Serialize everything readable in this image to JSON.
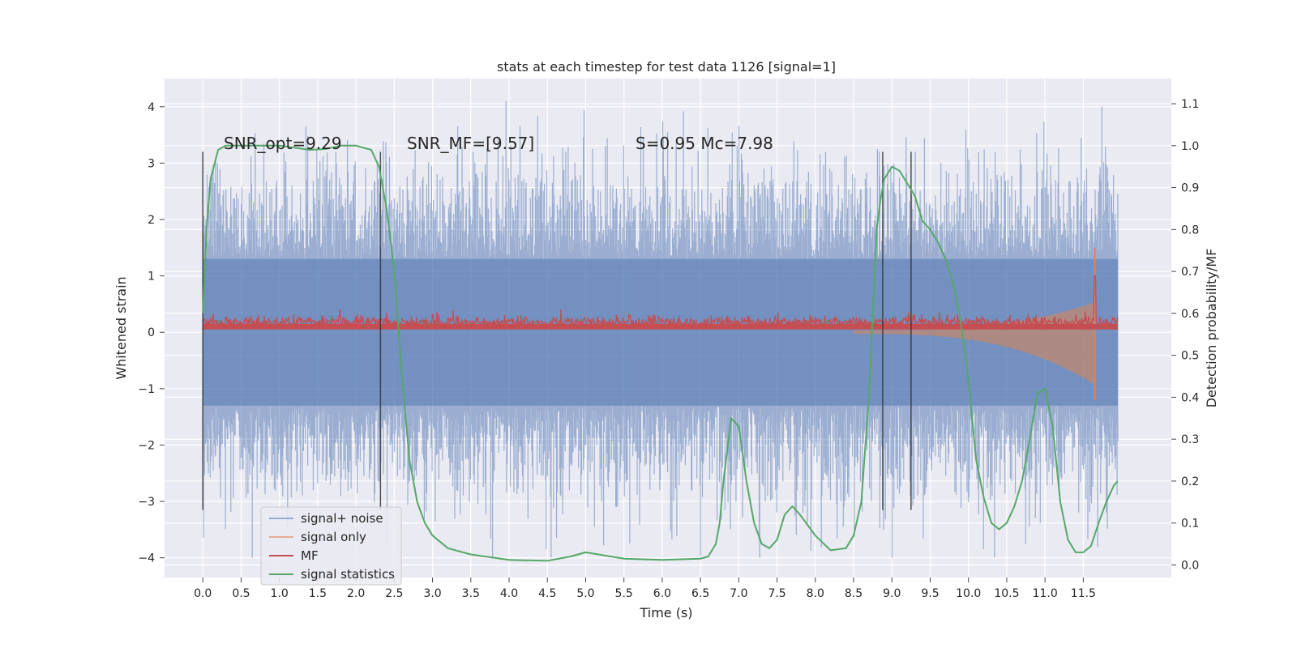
{
  "chart_data": {
    "type": "line",
    "title": "stats at each timestep for test data 1126 [signal=1]",
    "xlabel": "Time (s)",
    "ylabel": "Whitened strain",
    "y2label": "Detection probability/MF",
    "xlim": [
      -0.5,
      12.65
    ],
    "ylim": [
      -4.35,
      4.5
    ],
    "y2lim": [
      -0.03,
      1.16
    ],
    "x_ticks": [
      "0.0",
      "0.5",
      "1.0",
      "1.5",
      "2.0",
      "2.5",
      "3.0",
      "3.5",
      "4.0",
      "4.5",
      "5.0",
      "5.5",
      "6.0",
      "6.5",
      "7.0",
      "7.5",
      "8.0",
      "8.5",
      "9.0",
      "9.5",
      "10.0",
      "10.5",
      "11.0",
      "11.5"
    ],
    "y_ticks": [
      "4",
      "3",
      "2",
      "1",
      "0",
      "−1",
      "−2",
      "−3",
      "−4"
    ],
    "y2_ticks": [
      "1.1",
      "1.0",
      "0.9",
      "0.8",
      "0.7",
      "0.6",
      "0.5",
      "0.4",
      "0.3",
      "0.2",
      "0.1",
      "0.0"
    ],
    "grid": true,
    "legend_position": "lower-left",
    "colors": {
      "background": "#eaeaf2",
      "grid": "#ffffff",
      "signal_noise": "#4c72b0",
      "signal_only": "#dd8452",
      "mf": "#c44e52",
      "signal_statistics": "#55a868",
      "markers": "#333333"
    },
    "annotations": [
      {
        "text": "SNR_opt=9.29",
        "x": 0.2
      },
      {
        "text": "SNR_MF=[9.57]",
        "x": 2.6
      },
      {
        "text": "S=0.95   Mc=7.98",
        "x": 5.6
      }
    ],
    "vertical_markers": [
      0.0,
      2.32,
      8.88,
      9.25
    ],
    "series": [
      {
        "name": "signal+ noise",
        "axis": "left",
        "x_range": [
          0.0,
          11.95
        ],
        "envelope": [
          -4.0,
          4.1
        ]
      },
      {
        "name": "signal only",
        "axis": "left",
        "x_range": [
          8.5,
          11.65
        ],
        "envelope": [
          -1.2,
          1.5
        ]
      },
      {
        "name": "MF",
        "axis": "left",
        "x_range": [
          0.0,
          11.95
        ],
        "typical_range": [
          0.05,
          0.35
        ],
        "peak": [
          11.65,
          1.0
        ]
      },
      {
        "name": "signal statistics",
        "axis": "right",
        "x": [
          0.0,
          0.05,
          0.1,
          0.2,
          0.3,
          0.5,
          0.8,
          1.0,
          1.2,
          1.4,
          1.6,
          1.8,
          2.0,
          2.2,
          2.3,
          2.4,
          2.5,
          2.6,
          2.7,
          2.8,
          2.9,
          3.0,
          3.2,
          3.5,
          4.0,
          4.5,
          4.8,
          5.0,
          5.5,
          6.0,
          6.5,
          6.6,
          6.7,
          6.75,
          6.8,
          6.9,
          7.0,
          7.1,
          7.2,
          7.3,
          7.4,
          7.5,
          7.6,
          7.7,
          7.8,
          8.0,
          8.2,
          8.4,
          8.5,
          8.6,
          8.7,
          8.75,
          8.8,
          8.85,
          8.9,
          9.0,
          9.1,
          9.2,
          9.3,
          9.4,
          9.5,
          9.6,
          9.7,
          9.8,
          9.9,
          10.0,
          10.1,
          10.2,
          10.3,
          10.4,
          10.5,
          10.6,
          10.7,
          10.8,
          10.9,
          11.0,
          11.1,
          11.2,
          11.3,
          11.4,
          11.5,
          11.6,
          11.7,
          11.8,
          11.9,
          11.95
        ],
        "values": [
          0.6,
          0.8,
          0.92,
          0.99,
          1.0,
          1.0,
          1.0,
          1.0,
          0.995,
          0.99,
          0.992,
          1.0,
          1.0,
          0.99,
          0.95,
          0.85,
          0.7,
          0.45,
          0.25,
          0.15,
          0.1,
          0.07,
          0.04,
          0.025,
          0.012,
          0.01,
          0.02,
          0.03,
          0.015,
          0.012,
          0.015,
          0.02,
          0.05,
          0.1,
          0.2,
          0.35,
          0.33,
          0.2,
          0.1,
          0.05,
          0.04,
          0.06,
          0.12,
          0.14,
          0.12,
          0.07,
          0.035,
          0.04,
          0.07,
          0.15,
          0.4,
          0.6,
          0.8,
          0.87,
          0.92,
          0.95,
          0.94,
          0.91,
          0.88,
          0.82,
          0.8,
          0.77,
          0.73,
          0.67,
          0.58,
          0.44,
          0.25,
          0.16,
          0.1,
          0.085,
          0.1,
          0.14,
          0.2,
          0.3,
          0.41,
          0.42,
          0.33,
          0.15,
          0.06,
          0.03,
          0.03,
          0.045,
          0.1,
          0.15,
          0.19,
          0.2
        ]
      }
    ]
  }
}
